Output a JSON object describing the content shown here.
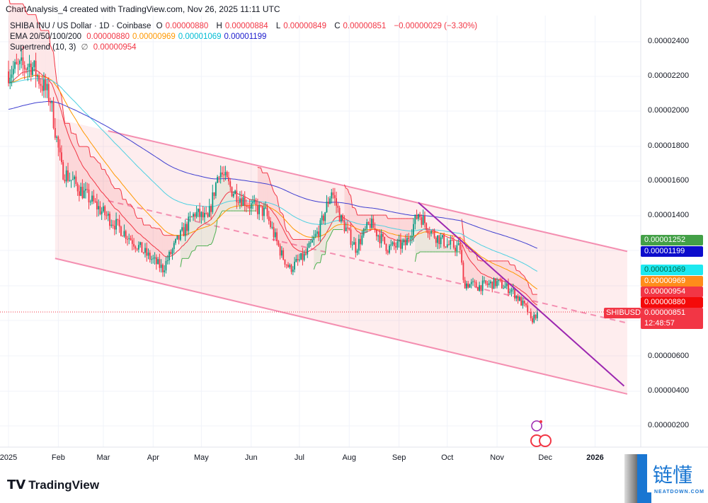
{
  "header": {
    "credit": "ChartAnalysis_4 created with TradingView.com, Nov 26, 2025 11:11 UTC"
  },
  "legend": {
    "symbol": "SHIBA INU / US Dollar · 1D · Coinbase",
    "o_label": "O",
    "o": "0.00000880",
    "h_label": "H",
    "h": "0.00000884",
    "l_label": "L",
    "l": "0.00000849",
    "c_label": "C",
    "c": "0.00000851",
    "change": "−0.00000029 (−3.30%)",
    "ema_label": "EMA 20/50/100/200",
    "ema20": "0.00000880",
    "ema50": "0.00000969",
    "ema100": "0.00001069",
    "ema200": "0.00001199",
    "st_label": "Supertrend (10, 3)",
    "st_icon": "∅",
    "st": "0.00000954"
  },
  "price_tags": [
    {
      "value": "0.00001252",
      "color": "#43a047"
    },
    {
      "value": "0.00001199",
      "color": "#0d0dcc"
    },
    {
      "value": "0.00001069",
      "color": "#1de9f0"
    },
    {
      "value": "0.00000969",
      "color": "#ff8c1a"
    },
    {
      "value": "0.00000954",
      "color": "#f23645"
    },
    {
      "value": "0.00000880",
      "color": "#f40a0a"
    },
    {
      "value": "0.00000851",
      "color": "#f23645",
      "sub": "12:48:57",
      "symbol": "SHIBUSD"
    }
  ],
  "chart_data": {
    "type": "candlestick",
    "yaxis": {
      "ticks": [
        "0.00002400",
        "0.00002200",
        "0.00002000",
        "0.00001800",
        "0.00001600",
        "0.00001400",
        "0.00000600",
        "0.00000400",
        "0.00000200"
      ],
      "range": [
        1e-06,
        2.54e-05
      ]
    },
    "xaxis": {
      "ticks": [
        "2025",
        "Feb",
        "Mar",
        "Apr",
        "May",
        "Jun",
        "Jul",
        "Aug",
        "Sep",
        "Oct",
        "Nov",
        "Dec",
        "2026"
      ]
    },
    "close_path": [
      [
        "2025-01-01",
        2.23e-05
      ],
      [
        "2025-01-15",
        2.27e-05
      ],
      [
        "2025-01-27",
        2.07e-05
      ],
      [
        "2025-02-03",
        1.67e-05
      ],
      [
        "2025-02-15",
        1.55e-05
      ],
      [
        "2025-03-01",
        1.42e-05
      ],
      [
        "2025-03-15",
        1.3e-05
      ],
      [
        "2025-03-28",
        1.18e-05
      ],
      [
        "2025-04-07",
        1.1e-05
      ],
      [
        "2025-04-16",
        1.26e-05
      ],
      [
        "2025-04-27",
        1.42e-05
      ],
      [
        "2025-05-05",
        1.38e-05
      ],
      [
        "2025-05-12",
        1.67e-05
      ],
      [
        "2025-05-20",
        1.55e-05
      ],
      [
        "2025-06-01",
        1.46e-05
      ],
      [
        "2025-06-10",
        1.42e-05
      ],
      [
        "2025-06-20",
        1.18e-05
      ],
      [
        "2025-06-25",
        1.1e-05
      ],
      [
        "2025-07-05",
        1.18e-05
      ],
      [
        "2025-07-14",
        1.34e-05
      ],
      [
        "2025-07-21",
        1.55e-05
      ],
      [
        "2025-07-27",
        1.38e-05
      ],
      [
        "2025-08-05",
        1.22e-05
      ],
      [
        "2025-08-14",
        1.36e-05
      ],
      [
        "2025-08-25",
        1.22e-05
      ],
      [
        "2025-09-05",
        1.24e-05
      ],
      [
        "2025-09-13",
        1.42e-05
      ],
      [
        "2025-09-22",
        1.3e-05
      ],
      [
        "2025-10-01",
        1.24e-05
      ],
      [
        "2025-10-09",
        1.22e-05
      ],
      [
        "2025-10-11",
        1.02e-05
      ],
      [
        "2025-10-20",
        1e-05
      ],
      [
        "2025-11-01",
        1.02e-05
      ],
      [
        "2025-11-10",
        9.8e-06
      ],
      [
        "2025-11-20",
        8.6e-06
      ],
      [
        "2025-11-22",
        8e-06
      ],
      [
        "2025-11-26",
        8.51e-06
      ]
    ],
    "channel": {
      "upper": [
        [
          "2025-03-04",
          1.89e-05
        ],
        [
          "2026-01-21",
          1.2e-05
        ]
      ],
      "lower": [
        [
          "2025-01-30",
          1.16e-05
        ],
        [
          "2026-01-21",
          3.84e-06
        ]
      ],
      "mid": [
        [
          "2025-03-04",
          1.49e-05
        ],
        [
          "2026-01-21",
          7.9e-06
        ]
      ]
    },
    "trendline": [
      [
        "2025-09-13",
        1.48e-05
      ],
      [
        "2026-01-19",
        4.3e-06
      ]
    ],
    "colors": {
      "up": "#089981",
      "down": "#f23645",
      "ema20": "#f23645",
      "ema50": "#ff9800",
      "ema100": "#4dd0e1",
      "ema200": "#3f3fd0",
      "channel": "#f48fb1",
      "trendline": "#9c27b0"
    }
  },
  "branding": {
    "tradingview": "TradingView",
    "nd_cn": "链懂",
    "nd_en": "NEATDOWN.COM"
  }
}
